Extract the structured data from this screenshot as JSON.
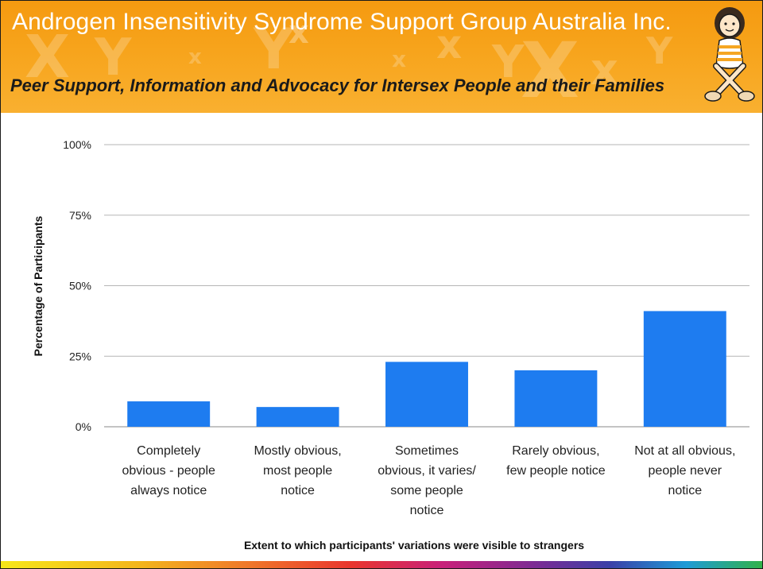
{
  "header": {
    "title": "Androgen Insensitivity Syndrome Support Group Australia Inc.",
    "tagline": "Peer Support, Information and Advocacy for Intersex People and their Families",
    "background_color": "#f7a41c",
    "mascot_icon": "seated-figure-mascot-icon"
  },
  "chart_data": {
    "type": "bar",
    "categories": [
      [
        "Completely",
        "obvious - people",
        "always notice"
      ],
      [
        "Mostly obvious,",
        "most people",
        "notice"
      ],
      [
        "Sometimes",
        "obvious, it varies/",
        "some people",
        "notice"
      ],
      [
        "Rarely obvious,",
        "few people notice"
      ],
      [
        "Not at all obvious,",
        "people never",
        "notice"
      ]
    ],
    "values": [
      9,
      7,
      23,
      20,
      41
    ],
    "ylim": [
      0,
      100
    ],
    "yticks": [
      "0%",
      "25%",
      "50%",
      "75%",
      "100%"
    ],
    "ytick_values": [
      0,
      25,
      50,
      75,
      100
    ],
    "xlabel": "Extent to which participants' variations were visible to strangers",
    "ylabel": "Percentage of Participants",
    "bar_color": "#1e7cf0",
    "grid": true,
    "legend": "none"
  }
}
